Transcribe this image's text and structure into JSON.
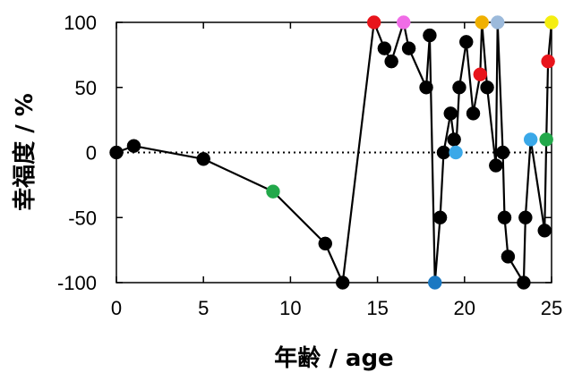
{
  "chart_data": {
    "type": "scatter",
    "title": "",
    "xlabel": "年齢 / age",
    "ylabel": "幸福度 / %",
    "xlim": [
      0,
      25
    ],
    "ylim": [
      -100,
      100
    ],
    "xticks": [
      0,
      5,
      10,
      15,
      20,
      25
    ],
    "yticks": [
      100,
      50,
      0,
      -50,
      -100
    ],
    "grid": false,
    "legend": "none",
    "zero_line": "dotted",
    "line_color": "#000000",
    "series": [
      {
        "style": "line-with-markers",
        "points": [
          {
            "x": 0,
            "y": 0,
            "color": "#000000"
          },
          {
            "x": 1,
            "y": 5,
            "color": "#000000"
          },
          {
            "x": 5,
            "y": -5,
            "color": "#000000"
          },
          {
            "x": 9,
            "y": -30,
            "color": "#22a84a"
          },
          {
            "x": 12,
            "y": -70,
            "color": "#000000"
          },
          {
            "x": 13,
            "y": -100,
            "color": "#000000"
          },
          {
            "x": 14.8,
            "y": 100,
            "color": "#e8141b"
          },
          {
            "x": 15.4,
            "y": 80,
            "color": "#000000"
          },
          {
            "x": 15.8,
            "y": 70,
            "color": "#000000"
          },
          {
            "x": 16.5,
            "y": 100,
            "color": "#f06ce6"
          },
          {
            "x": 16.8,
            "y": 80,
            "color": "#000000"
          },
          {
            "x": 17.8,
            "y": 50,
            "color": "#000000"
          },
          {
            "x": 18,
            "y": 90,
            "color": "#000000"
          },
          {
            "x": 18.3,
            "y": -100,
            "color": "#1a78c2"
          },
          {
            "x": 18.6,
            "y": -50,
            "color": "#000000"
          },
          {
            "x": 18.8,
            "y": 0,
            "color": "#000000"
          },
          {
            "x": 19.2,
            "y": 30,
            "color": "#000000"
          },
          {
            "x": 19.4,
            "y": 10,
            "color": "#000000"
          },
          {
            "x": 19.5,
            "y": 0,
            "color": "#3aa8e8"
          },
          {
            "x": 19.7,
            "y": 50,
            "color": "#000000"
          },
          {
            "x": 20.1,
            "y": 85,
            "color": "#000000"
          },
          {
            "x": 20.5,
            "y": 30,
            "color": "#000000"
          },
          {
            "x": 20.9,
            "y": 60,
            "color": "#e8141b"
          },
          {
            "x": 21.0,
            "y": 100,
            "color": "#f0b000"
          },
          {
            "x": 21.3,
            "y": 50,
            "color": "#000000"
          },
          {
            "x": 21.8,
            "y": -10,
            "color": "#000000"
          },
          {
            "x": 21.9,
            "y": 100,
            "color": "#9cbadb"
          },
          {
            "x": 22.2,
            "y": 0,
            "color": "#000000"
          },
          {
            "x": 22.3,
            "y": -50,
            "color": "#000000"
          },
          {
            "x": 22.5,
            "y": -80,
            "color": "#000000"
          },
          {
            "x": 23.4,
            "y": -100,
            "color": "#000000"
          },
          {
            "x": 23.5,
            "y": -50,
            "color": "#000000"
          },
          {
            "x": 23.8,
            "y": 10,
            "color": "#3aa8e8"
          },
          {
            "x": 24.6,
            "y": -60,
            "color": "#000000"
          },
          {
            "x": 24.7,
            "y": 10,
            "color": "#22a84a"
          },
          {
            "x": 24.8,
            "y": 70,
            "color": "#e8141b"
          },
          {
            "x": 25,
            "y": 100,
            "color": "#f5ee10"
          }
        ]
      }
    ]
  }
}
